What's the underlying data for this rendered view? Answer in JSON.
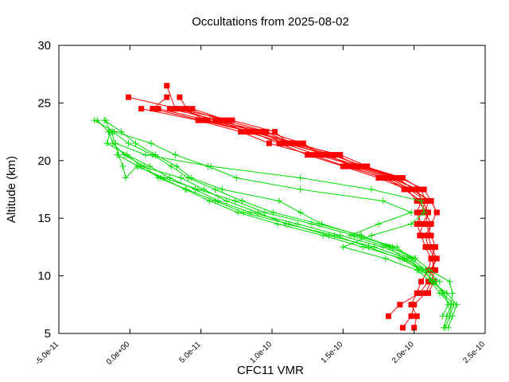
{
  "chart_data": {
    "type": "line",
    "title": "Occultations from 2025-08-02",
    "xlabel": "CFC11 VMR",
    "ylabel": "Altitude (km)",
    "xlim": [
      -5e-11,
      2.5e-10
    ],
    "ylim": [
      5,
      30
    ],
    "x_ticks": [
      -5e-11,
      0,
      5e-11,
      1e-10,
      1.5e-10,
      2e-10,
      2.5e-10
    ],
    "x_tick_labels": [
      "-5.0e-11",
      "0.0e+00",
      "5.0e-11",
      "1.0e-10",
      "1.5e-10",
      "2.0e-10",
      "2.5e-10"
    ],
    "y_ticks": [
      5,
      10,
      15,
      20,
      25,
      30
    ],
    "y_tick_labels": [
      "5",
      "10",
      "15",
      "20",
      "25",
      "30"
    ],
    "grid": false,
    "legend": "none",
    "colors": {
      "red": "#ff0000",
      "green": "#00dd00",
      "axis": "#000000"
    },
    "series": [
      {
        "color": "red",
        "marker": "square",
        "points": [
          [
            2.6e-11,
            26.5
          ],
          [
            3.2e-11,
            24.5
          ],
          [
            7.2e-11,
            23.5
          ],
          [
            1.02e-10,
            22.5
          ],
          [
            1.12e-10,
            21.5
          ],
          [
            1.38e-10,
            20.5
          ],
          [
            1.58e-10,
            19.5
          ],
          [
            1.82e-10,
            18.5
          ],
          [
            1.98e-10,
            17.5
          ],
          [
            2.12e-10,
            16.5
          ],
          [
            2.16e-10,
            15.5
          ],
          [
            2.12e-10,
            14.5
          ],
          [
            2.1e-10,
            13.5
          ],
          [
            2.12e-10,
            12.5
          ],
          [
            2.16e-10,
            11.5
          ],
          [
            2.12e-10,
            10.5
          ],
          [
            2.1e-10,
            9.5
          ],
          [
            2.04e-10,
            8.5
          ],
          [
            1.9e-10,
            7.5
          ],
          [
            1.82e-10,
            6.5
          ]
        ]
      },
      {
        "color": "red",
        "marker": "square",
        "points": [
          [
            -1e-12,
            25.5
          ],
          [
            3.4e-11,
            24.5
          ],
          [
            6e-11,
            23.5
          ],
          [
            9.5e-11,
            22.5
          ],
          [
            1.14e-10,
            21.5
          ],
          [
            1.42e-10,
            20.5
          ],
          [
            1.65e-10,
            19.5
          ],
          [
            1.92e-10,
            18.5
          ],
          [
            2.05e-10,
            17.5
          ],
          [
            2.08e-10,
            16.5
          ],
          [
            2.05e-10,
            15.5
          ],
          [
            2.02e-10,
            14.5
          ],
          [
            2.05e-10,
            13.5
          ],
          [
            2.08e-10,
            12.5
          ],
          [
            2.12e-10,
            11.5
          ],
          [
            2.15e-10,
            10.5
          ],
          [
            2.12e-10,
            9.5
          ],
          [
            2.08e-10,
            8.5
          ],
          [
            2e-10,
            7.5
          ],
          [
            1.98e-10,
            6.5
          ],
          [
            1.92e-10,
            5.5
          ]
        ]
      },
      {
        "color": "red",
        "marker": "square",
        "points": [
          [
            2.6e-11,
            25.5
          ],
          [
            1.6e-11,
            24.5
          ],
          [
            5e-11,
            23.5
          ],
          [
            8.5e-11,
            22.5
          ],
          [
            1.05e-10,
            21.5
          ],
          [
            1.25e-10,
            20.5
          ],
          [
            1.5e-10,
            19.5
          ],
          [
            1.75e-10,
            18.5
          ],
          [
            1.95e-10,
            17.5
          ],
          [
            2.02e-10,
            16.5
          ],
          [
            2.1e-10,
            15.5
          ],
          [
            2.08e-10,
            14.5
          ],
          [
            2.12e-10,
            13.5
          ],
          [
            2.15e-10,
            12.5
          ],
          [
            2.12e-10,
            11.5
          ],
          [
            2.1e-10,
            10.5
          ],
          [
            2.05e-10,
            9.5
          ],
          [
            2.02e-10,
            8.5
          ],
          [
            1.98e-10,
            7.5
          ],
          [
            2.02e-10,
            6.5
          ],
          [
            2e-10,
            5.5
          ]
        ]
      },
      {
        "color": "red",
        "marker": "square",
        "points": [
          [
            3.5e-11,
            25.5
          ],
          [
            4e-11,
            24.5
          ],
          [
            6.5e-11,
            23.5
          ],
          [
            8.8e-11,
            22.5
          ],
          [
            1.18e-10,
            21.5
          ],
          [
            1.45e-10,
            20.5
          ],
          [
            1.62e-10,
            19.5
          ],
          [
            1.88e-10,
            18.5
          ],
          [
            2e-10,
            17.5
          ],
          [
            2.1e-10,
            16.5
          ],
          [
            2.08e-10,
            15.5
          ],
          [
            2.12e-10,
            14.5
          ],
          [
            2.08e-10,
            13.5
          ],
          [
            2.1e-10,
            12.5
          ],
          [
            2.15e-10,
            11.5
          ],
          [
            2.12e-10,
            10.5
          ],
          [
            2.14e-10,
            9.5
          ],
          [
            2.1e-10,
            8.5
          ]
        ]
      },
      {
        "color": "red",
        "marker": "square",
        "points": [
          [
            8e-12,
            24.5
          ],
          [
            4.8e-11,
            23.5
          ],
          [
            7.8e-11,
            22.5
          ],
          [
            9.8e-11,
            21.5
          ],
          [
            1.28e-10,
            20.5
          ],
          [
            1.52e-10,
            19.5
          ],
          [
            1.8e-10,
            18.5
          ],
          [
            1.93e-10,
            17.5
          ],
          [
            2.05e-10,
            16.5
          ],
          [
            2.02e-10,
            15.5
          ],
          [
            2.05e-10,
            14.5
          ]
        ]
      },
      {
        "color": "red",
        "marker": "square",
        "points": [
          [
            2e-11,
            24.5
          ],
          [
            5.5e-11,
            23.5
          ],
          [
            9.2e-11,
            22.5
          ],
          [
            1.08e-10,
            21.5
          ],
          [
            1.32e-10,
            20.5
          ],
          [
            1.6e-10,
            19.5
          ],
          [
            1.85e-10,
            18.5
          ],
          [
            2.02e-10,
            17.5
          ],
          [
            2.06e-10,
            16.5
          ],
          [
            2.1e-10,
            15.5
          ],
          [
            2.06e-10,
            14.5
          ],
          [
            2.04e-10,
            13.5
          ]
        ]
      },
      {
        "color": "red",
        "marker": "square",
        "points": [
          [
            2.8e-11,
            24.5
          ],
          [
            6.2e-11,
            23.5
          ],
          [
            8.2e-11,
            22.5
          ],
          [
            1.1e-10,
            21.5
          ],
          [
            1.4e-10,
            20.5
          ],
          [
            1.55e-10,
            19.5
          ],
          [
            1.78e-10,
            18.5
          ],
          [
            1.97e-10,
            17.5
          ],
          [
            2.08e-10,
            16.5
          ]
        ]
      },
      {
        "color": "red",
        "marker": "square",
        "points": [
          [
            4.4e-11,
            24.5
          ],
          [
            6.8e-11,
            23.5
          ],
          [
            9.6e-11,
            22.5
          ],
          [
            1.22e-10,
            21.5
          ],
          [
            1.35e-10,
            20.5
          ],
          [
            1.63e-10,
            19.5
          ],
          [
            1.9e-10,
            18.5
          ],
          [
            2.07e-10,
            17.5
          ],
          [
            2.12e-10,
            16.5
          ],
          [
            2.16e-10,
            15.5
          ]
        ]
      },
      {
        "color": "red",
        "marker": "square",
        "points": [
          [
            3.8e-11,
            24.5
          ],
          [
            5.3e-11,
            23.5
          ],
          [
            8.6e-11,
            22.5
          ],
          [
            1.15e-10,
            21.5
          ],
          [
            1.48e-10,
            20.5
          ],
          [
            1.67e-10,
            19.5
          ],
          [
            1.83e-10,
            18.5
          ],
          [
            2.03e-10,
            17.5
          ]
        ]
      },
      {
        "color": "green",
        "marker": "plus",
        "points": [
          [
            -2.3e-11,
            23.5
          ],
          [
            -1.5e-11,
            22.5
          ],
          [
            -1.2e-11,
            21.5
          ],
          [
            -4e-12,
            20.5
          ],
          [
            1e-11,
            19.5
          ],
          [
            2e-11,
            18.5
          ],
          [
            4e-11,
            17.5
          ],
          [
            6e-11,
            16.5
          ],
          [
            8e-11,
            15.5
          ],
          [
            1.12e-10,
            14.5
          ],
          [
            1.4e-10,
            13.5
          ],
          [
            1.72e-10,
            12.5
          ],
          [
            1.95e-10,
            11.5
          ],
          [
            2.05e-10,
            10.5
          ],
          [
            2.15e-10,
            9.5
          ],
          [
            2.2e-10,
            8.5
          ],
          [
            2.28e-10,
            7.5
          ],
          [
            2.25e-10,
            6.5
          ],
          [
            2.22e-10,
            5.5
          ]
        ]
      },
      {
        "color": "green",
        "marker": "plus",
        "points": [
          [
            -1.7e-11,
            23.5
          ],
          [
            -1.4e-11,
            22.5
          ],
          [
            -1.6e-11,
            21.5
          ],
          [
            -2e-12,
            20.5
          ],
          [
            1.4e-11,
            19.5
          ],
          [
            2.8e-11,
            18.5
          ],
          [
            4.6e-11,
            17.5
          ],
          [
            6.2e-11,
            16.5
          ],
          [
            8.5e-11,
            15.5
          ],
          [
            1.18e-10,
            14.5
          ],
          [
            1.48e-10,
            13.5
          ],
          [
            1.78e-10,
            12.5
          ],
          [
            1.98e-10,
            11.5
          ],
          [
            2.08e-10,
            10.5
          ],
          [
            2.12e-10,
            9.5
          ],
          [
            2.23e-10,
            8.5
          ],
          [
            2.3e-10,
            7.5
          ],
          [
            2.27e-10,
            6.5
          ],
          [
            2.24e-10,
            5.5
          ]
        ]
      },
      {
        "color": "green",
        "marker": "plus",
        "points": [
          [
            -2.5e-11,
            23.5
          ],
          [
            -1.1e-11,
            22.5
          ],
          [
            1.5e-11,
            21.5
          ],
          [
            3.2e-11,
            20.5
          ],
          [
            5.5e-11,
            19.5
          ],
          [
            7.5e-11,
            18.5
          ],
          [
            1.2e-10,
            17.5
          ],
          [
            1.78e-10,
            16.5
          ],
          [
            1.98e-10,
            15.5
          ],
          [
            1.75e-10,
            14.5
          ],
          [
            1.55e-10,
            13.5
          ],
          [
            1.82e-10,
            12.5
          ],
          [
            1.93e-10,
            11.5
          ],
          [
            2.08e-10,
            10.5
          ],
          [
            2.18e-10,
            9.5
          ]
        ]
      },
      {
        "color": "green",
        "marker": "plus",
        "points": [
          [
            -1.8e-11,
            23.5
          ],
          [
            -6e-12,
            22.5
          ],
          [
            4e-12,
            21.5
          ],
          [
            1.8e-11,
            20.5
          ],
          [
            3.3e-11,
            19.5
          ],
          [
            4.3e-11,
            18.5
          ],
          [
            6.5e-11,
            17.5
          ],
          [
            1.05e-10,
            16.5
          ],
          [
            1.2e-10,
            15.5
          ],
          [
            1.35e-10,
            14.5
          ],
          [
            1.62e-10,
            13.5
          ],
          [
            1.85e-10,
            12.5
          ],
          [
            2.01e-10,
            11.5
          ],
          [
            2.11e-10,
            10.5
          ],
          [
            2.25e-10,
            9.5
          ],
          [
            2.27e-10,
            8.5
          ],
          [
            2.26e-10,
            7.5
          ],
          [
            2.25e-10,
            6.5
          ]
        ]
      },
      {
        "color": "green",
        "marker": "plus",
        "points": [
          [
            -1.3e-11,
            22.5
          ],
          [
            -8e-12,
            20.5
          ],
          [
            -5e-12,
            19.5
          ],
          [
            -3e-12,
            18.5
          ],
          [
            5e-12,
            19.5
          ],
          [
            2.4e-11,
            18.5
          ],
          [
            4.8e-11,
            17.5
          ],
          [
            7.4e-11,
            16.5
          ],
          [
            9.5e-11,
            15.5
          ],
          [
            1.28e-10,
            14.5
          ],
          [
            1.58e-10,
            13.5
          ],
          [
            1.88e-10,
            12.5
          ],
          [
            1.98e-10,
            11.5
          ],
          [
            2.03e-10,
            10.5
          ]
        ]
      },
      {
        "color": "green",
        "marker": "plus",
        "points": [
          [
            -1.6e-11,
            21.5
          ],
          [
            -2e-12,
            20.5
          ],
          [
            8e-12,
            19.5
          ],
          [
            3.6e-11,
            18.5
          ],
          [
            5.2e-11,
            17.5
          ],
          [
            6.8e-11,
            16.5
          ],
          [
            9e-11,
            15.5
          ],
          [
            1.1e-10,
            14.5
          ],
          [
            1.44e-10,
            13.5
          ],
          [
            1.68e-10,
            12.5
          ],
          [
            1.9e-10,
            11.5
          ],
          [
            2.06e-10,
            10.5
          ],
          [
            2.14e-10,
            9.5
          ],
          [
            2.21e-10,
            8.5
          ],
          [
            2.24e-10,
            7.5
          ],
          [
            2.2e-10,
            6.5
          ]
        ]
      },
      {
        "color": "green",
        "marker": "plus",
        "points": [
          [
            -1e-11,
            21.5
          ],
          [
            1.1e-11,
            20.5
          ],
          [
            5.7e-11,
            19.5
          ],
          [
            1.2e-10,
            18.5
          ],
          [
            1.7e-10,
            17.5
          ],
          [
            2.05e-10,
            16.5
          ],
          [
            2.07e-10,
            15.5
          ],
          [
            1.98e-10,
            14.5
          ],
          [
            1.7e-10,
            13.5
          ],
          [
            1.5e-10,
            12.5
          ],
          [
            1.8e-10,
            11.5
          ],
          [
            2.02e-10,
            10.5
          ],
          [
            2.12e-10,
            9.5
          ],
          [
            2.18e-10,
            8.5
          ],
          [
            2.26e-10,
            7.5
          ],
          [
            2.23e-10,
            6.5
          ],
          [
            2.21e-10,
            5.5
          ]
        ]
      },
      {
        "color": "green",
        "marker": "plus",
        "points": [
          [
            -9e-12,
            20.5
          ],
          [
            6e-12,
            19.5
          ],
          [
            2.2e-11,
            18.5
          ],
          [
            3.9e-11,
            17.5
          ],
          [
            5.6e-11,
            16.5
          ],
          [
            7.6e-11,
            15.5
          ],
          [
            1.04e-10,
            14.5
          ],
          [
            1.36e-10,
            13.5
          ],
          [
            1.64e-10,
            12.5
          ],
          [
            1.92e-10,
            11.5
          ],
          [
            2.04e-10,
            10.5
          ]
        ]
      },
      {
        "color": "green",
        "marker": "plus",
        "points": [
          [
            -1.2e-11,
            22.5
          ],
          [
            -1e-12,
            21.5
          ],
          [
            1.6e-11,
            20.5
          ],
          [
            2.9e-11,
            19.5
          ],
          [
            4.1e-11,
            18.5
          ],
          [
            6e-11,
            17.5
          ],
          [
            7.9e-11,
            16.5
          ],
          [
            1.01e-10,
            15.5
          ],
          [
            1.33e-10,
            14.5
          ],
          [
            1.63e-10,
            13.5
          ],
          [
            1.83e-10,
            12.5
          ],
          [
            2e-10,
            11.5
          ]
        ]
      }
    ]
  }
}
